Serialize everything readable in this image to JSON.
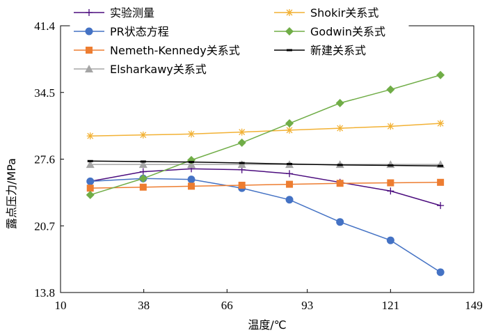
{
  "chart_data": {
    "type": "line",
    "title": "",
    "xlabel": "温度/℃",
    "ylabel": "露点压力/MPa",
    "xlim": [
      10,
      149
    ],
    "ylim": [
      13.8,
      41.4
    ],
    "x_ticks": [
      "10",
      "38",
      "66",
      "93",
      "121",
      "149"
    ],
    "y_ticks": [
      "13.8",
      "20.7",
      "27.6",
      "34.5",
      "41.4"
    ],
    "grid": false,
    "legend_position": "top",
    "series": [
      {
        "name": "实验测量",
        "color": "#4b0c7e",
        "marker": "plus",
        "x": [
          20,
          37.8,
          54,
          71,
          87,
          104,
          121,
          137.8
        ],
        "y": [
          25.3,
          26.3,
          26.6,
          26.5,
          26.1,
          25.2,
          24.3,
          22.8
        ]
      },
      {
        "name": "PR状态方程",
        "color": "#4472c4",
        "marker": "circle",
        "x": [
          20,
          37.8,
          54,
          71,
          87,
          104,
          121,
          137.8
        ],
        "y": [
          25.3,
          25.6,
          25.5,
          24.6,
          23.4,
          21.1,
          19.2,
          15.9
        ]
      },
      {
        "name": "Nemeth-Kennedy关系式",
        "color": "#ed7d31",
        "marker": "square",
        "x": [
          20,
          37.8,
          54,
          71,
          87,
          104,
          121,
          137.8
        ],
        "y": [
          24.6,
          24.7,
          24.8,
          24.9,
          25.0,
          25.1,
          25.15,
          25.2
        ]
      },
      {
        "name": "Elsharkawy关系式",
        "color": "#a5a5a5",
        "marker": "triangle",
        "x": [
          20,
          37.8,
          54,
          71,
          87,
          104,
          121,
          137.8
        ],
        "y": [
          27.05,
          27.05,
          27.05,
          27.05,
          27.05,
          27.05,
          27.05,
          27.05
        ]
      },
      {
        "name": "Shokir关系式",
        "color": "#f2b134",
        "marker": "asterisk",
        "x": [
          20,
          37.8,
          54,
          71,
          87,
          104,
          121,
          137.8
        ],
        "y": [
          30.0,
          30.1,
          30.2,
          30.4,
          30.6,
          30.8,
          31.0,
          31.3
        ]
      },
      {
        "name": "Godwin关系式",
        "color": "#70ad47",
        "marker": "diamond",
        "x": [
          20,
          37.8,
          54,
          71,
          87,
          104,
          121,
          137.8
        ],
        "y": [
          23.9,
          25.6,
          27.5,
          29.3,
          31.3,
          33.4,
          34.8,
          36.3
        ]
      },
      {
        "name": "新建关系式",
        "color": "#000000",
        "marker": "dash",
        "x": [
          20,
          37.8,
          54,
          71,
          87,
          104,
          121,
          137.8
        ],
        "y": [
          27.4,
          27.35,
          27.3,
          27.2,
          27.1,
          27.0,
          26.95,
          26.9
        ]
      }
    ]
  }
}
